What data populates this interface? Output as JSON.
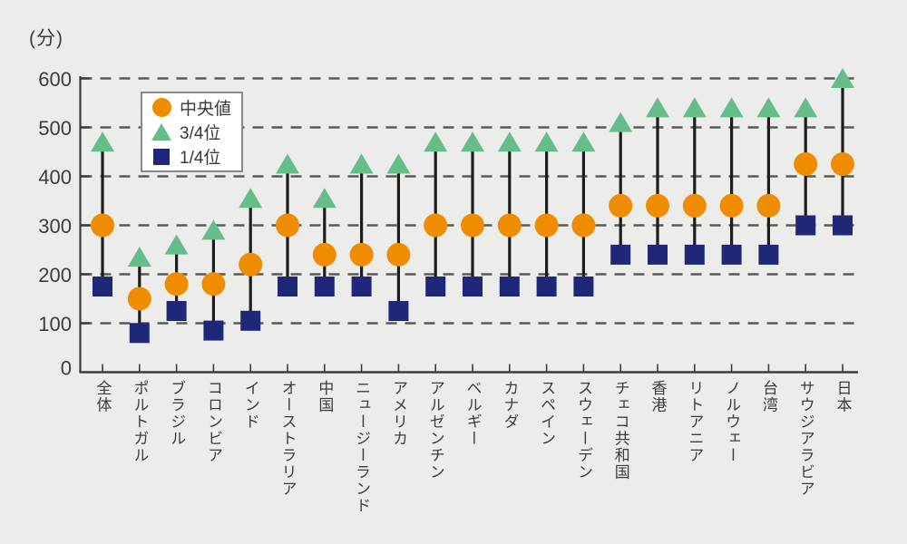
{
  "chart_data": {
    "type": "scatter",
    "subtype": "quartile-range-dot-plot",
    "title": "",
    "unit_label": "(分)",
    "ylabel": "(分)",
    "ylim": [
      0,
      600
    ],
    "yticks": [
      0,
      100,
      200,
      300,
      400,
      500,
      600
    ],
    "grid": "horizontal dashed",
    "legend_position": "upper-left",
    "categories": [
      "全体",
      "ポルトガル",
      "ブラジル",
      "コロンビア",
      "インド",
      "オーストラリア",
      "中国",
      "ニュージーランド",
      "アメリカ",
      "アルゼンチン",
      "ベルギー",
      "カナダ",
      "スペイン",
      "スウェーデン",
      "チェコ共和国",
      "香港",
      "リトアニア",
      "ノルウェー",
      "台湾",
      "サウジアラビア",
      "日本"
    ],
    "series": [
      {
        "name": "中央値",
        "marker": "circle",
        "color": "#EF8C00",
        "values": [
          300,
          150,
          180,
          180,
          220,
          300,
          240,
          240,
          240,
          300,
          300,
          300,
          300,
          300,
          340,
          340,
          340,
          340,
          340,
          425,
          425
        ]
      },
      {
        "name": "3/4位",
        "marker": "triangle",
        "color": "#65BE8A",
        "values": [
          470,
          235,
          260,
          290,
          355,
          425,
          355,
          425,
          425,
          470,
          470,
          470,
          470,
          470,
          510,
          540,
          540,
          540,
          540,
          540,
          600
        ]
      },
      {
        "name": "1/4位",
        "marker": "square",
        "color": "#1F2878",
        "values": [
          175,
          80,
          125,
          85,
          105,
          175,
          175,
          175,
          125,
          175,
          175,
          175,
          175,
          175,
          240,
          240,
          240,
          240,
          240,
          300,
          300
        ]
      }
    ]
  },
  "colors": {
    "background": "#ECEDEB",
    "gridline": "#5a5a58",
    "axis": "#3f3b3a",
    "stem": "#1c1c1c",
    "text": "#3f3b3a",
    "legend_border": "#8a8a8a",
    "legend_background": "#ffffff"
  }
}
